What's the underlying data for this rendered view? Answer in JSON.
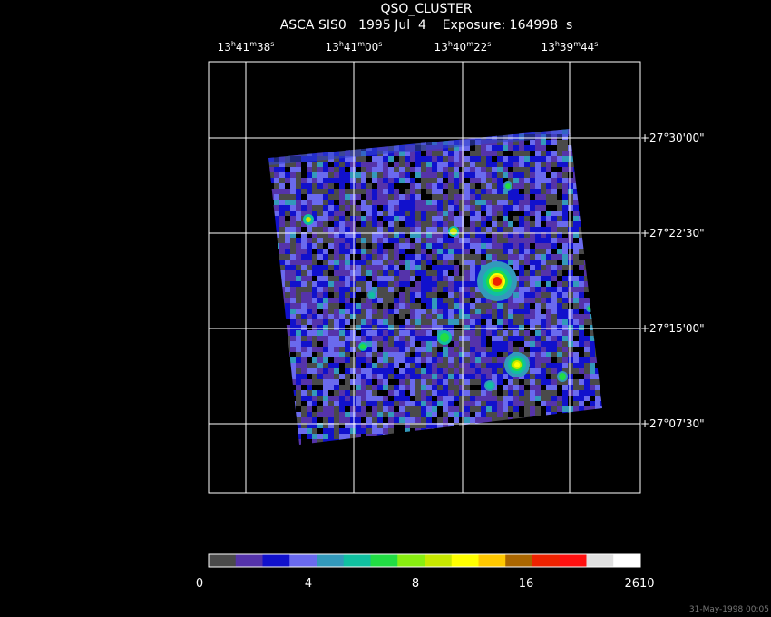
{
  "header": {
    "title": "QSO_CLUSTER",
    "subtitle": "ASCA SIS0   1995 Jul  4    Exposure: 164998  s"
  },
  "ra_ticks": [
    {
      "h": "13",
      "m": "41",
      "s": "38"
    },
    {
      "h": "13",
      "m": "41",
      "s": "00"
    },
    {
      "h": "13",
      "m": "40",
      "s": "22"
    },
    {
      "h": "13",
      "m": "39",
      "s": "44"
    }
  ],
  "dec_ticks": [
    "+27°30'00\"",
    "+27°22'30\"",
    "+27°15'00\"",
    "+27°07'30\""
  ],
  "colorbar": {
    "labels": [
      "0",
      "4",
      "8",
      "16",
      "2610"
    ],
    "colors": [
      "#4a4a4a",
      "#5533aa",
      "#1111cc",
      "#6a6aee",
      "#3399bb",
      "#10c0a0",
      "#22dd44",
      "#88ee11",
      "#c8e800",
      "#ffff00",
      "#ffc800",
      "#aa6600",
      "#ee2200",
      "#ff1010",
      "#e0e0e0",
      "#ffffff"
    ]
  },
  "timestamp": "31-May-1998 00:05",
  "image": {
    "background_colors": [
      "#4a4a4a",
      "#5533aa",
      "#1111cc",
      "#6a6aee",
      "#3399bb"
    ],
    "sources": [
      {
        "name": "bright-source-center",
        "peak": "#ee2200"
      },
      {
        "name": "source-lower-right",
        "peak": "#ffff00"
      }
    ]
  }
}
